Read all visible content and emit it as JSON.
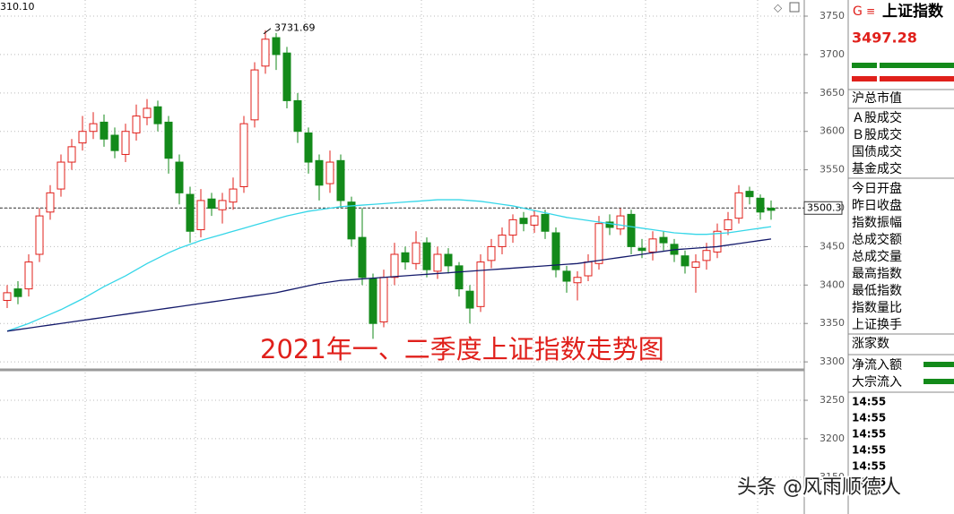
{
  "chart_data": {
    "type": "candlestick",
    "title": "2021年一、二季度上证指数走势图",
    "corner_label": "310.10",
    "ylim": [
      3102,
      3771
    ],
    "yticks": [
      3150,
      3200,
      3250,
      3300,
      3350,
      3400,
      3450,
      3500,
      3550,
      3600,
      3650,
      3700,
      3750
    ],
    "grid": true,
    "ref_line": 3500.3,
    "up_color": "#e0201b",
    "down_color": "#138a1a",
    "open": [
      3380,
      3395,
      3395,
      3440,
      3495,
      3525,
      3560,
      3585,
      3600,
      3612,
      3595,
      3570,
      3598,
      3618,
      3632,
      3612,
      3560,
      3518,
      3472,
      3512,
      3498,
      3508,
      3528,
      3615,
      3685,
      3722,
      3702,
      3640,
      3598,
      3562,
      3532,
      3562,
      3508,
      3462,
      3408,
      3352,
      3410,
      3442,
      3428,
      3455,
      3418,
      3440,
      3425,
      3392,
      3372,
      3432,
      3450,
      3465,
      3487,
      3478,
      3492,
      3468,
      3418,
      3403,
      3412,
      3428,
      3482,
      3473,
      3492,
      3448,
      3443,
      3462,
      3453,
      3438,
      3423,
      3432,
      3443,
      3472,
      3487,
      3522,
      3513,
      3500
    ],
    "high": [
      3400,
      3405,
      3440,
      3500,
      3530,
      3570,
      3590,
      3620,
      3625,
      3622,
      3605,
      3610,
      3635,
      3642,
      3640,
      3620,
      3570,
      3528,
      3525,
      3520,
      3520,
      3540,
      3620,
      3690,
      3731.69,
      3728,
      3710,
      3650,
      3605,
      3570,
      3575,
      3570,
      3515,
      3500,
      3415,
      3420,
      3455,
      3450,
      3470,
      3462,
      3450,
      3448,
      3430,
      3400,
      3440,
      3460,
      3475,
      3492,
      3495,
      3498,
      3498,
      3475,
      3425,
      3418,
      3440,
      3490,
      3492,
      3500,
      3498,
      3460,
      3470,
      3470,
      3460,
      3445,
      3440,
      3455,
      3480,
      3495,
      3530,
      3528,
      3518,
      3510
    ],
    "low": [
      3370,
      3375,
      3385,
      3430,
      3485,
      3515,
      3550,
      3575,
      3590,
      3580,
      3565,
      3560,
      3588,
      3608,
      3600,
      3545,
      3505,
      3455,
      3462,
      3490,
      3480,
      3498,
      3520,
      3605,
      3675,
      3680,
      3630,
      3585,
      3545,
      3510,
      3520,
      3500,
      3450,
      3400,
      3330,
      3345,
      3400,
      3420,
      3420,
      3410,
      3408,
      3415,
      3385,
      3350,
      3365,
      3422,
      3440,
      3455,
      3470,
      3468,
      3460,
      3410,
      3390,
      3380,
      3405,
      3420,
      3465,
      3465,
      3440,
      3435,
      3432,
      3445,
      3430,
      3415,
      3390,
      3420,
      3435,
      3465,
      3480,
      3505,
      3485,
      3485
    ],
    "close": [
      3390,
      3385,
      3430,
      3490,
      3520,
      3560,
      3580,
      3600,
      3610,
      3590,
      3575,
      3600,
      3620,
      3630,
      3610,
      3565,
      3520,
      3470,
      3510,
      3500,
      3510,
      3525,
      3610,
      3680,
      3720,
      3700,
      3640,
      3600,
      3560,
      3530,
      3560,
      3510,
      3460,
      3410,
      3350,
      3410,
      3440,
      3430,
      3455,
      3420,
      3440,
      3425,
      3395,
      3370,
      3430,
      3450,
      3465,
      3485,
      3480,
      3490,
      3470,
      3420,
      3405,
      3410,
      3430,
      3480,
      3475,
      3490,
      3450,
      3445,
      3460,
      3455,
      3440,
      3425,
      3430,
      3445,
      3470,
      3485,
      3520,
      3515,
      3495,
      3497.28
    ],
    "series": [
      {
        "color": "#35d6e8",
        "values": [
          3340,
          3345,
          3350,
          3356,
          3362,
          3368,
          3375,
          3382,
          3390,
          3398,
          3405,
          3412,
          3420,
          3428,
          3435,
          3442,
          3448,
          3453,
          3458,
          3462,
          3466,
          3470,
          3474,
          3478,
          3482,
          3486,
          3490,
          3493,
          3496,
          3498,
          3500,
          3502,
          3503,
          3504,
          3505,
          3506,
          3507,
          3508,
          3509,
          3510,
          3511,
          3511,
          3511,
          3510,
          3509,
          3507,
          3505,
          3503,
          3500,
          3497,
          3494,
          3491,
          3488,
          3486,
          3484,
          3482,
          3480,
          3478,
          3476,
          3474,
          3472,
          3470,
          3468,
          3467,
          3466,
          3466,
          3467,
          3468,
          3470,
          3472,
          3474,
          3476
        ]
      },
      {
        "color": "#141a6b",
        "values": [
          3340,
          3342,
          3344,
          3346,
          3348,
          3350,
          3352,
          3354,
          3356,
          3358,
          3360,
          3362,
          3364,
          3366,
          3368,
          3370,
          3372,
          3374,
          3376,
          3378,
          3380,
          3382,
          3384,
          3386,
          3388,
          3390,
          3393,
          3396,
          3399,
          3402,
          3404,
          3406,
          3407,
          3408,
          3409,
          3410,
          3411,
          3412,
          3413,
          3414,
          3415,
          3416,
          3417,
          3418,
          3419,
          3420,
          3421,
          3422,
          3423,
          3424,
          3425,
          3426,
          3427,
          3428,
          3430,
          3432,
          3434,
          3436,
          3438,
          3440,
          3442,
          3444,
          3446,
          3447,
          3448,
          3449,
          3450,
          3452,
          3454,
          3456,
          3458,
          3460
        ]
      }
    ]
  },
  "sidebar": {
    "code": "G",
    "name": "上证指数",
    "price": "3497.28",
    "fields": [
      "沪总市值",
      "Ａ股成交",
      "Ｂ股成交",
      "国债成交",
      "基金成交",
      "今日开盘",
      "昨日收盘",
      "指数振幅",
      "总成交额",
      "总成交量",
      "最高指数",
      "最低指数",
      "指数量比",
      "上证换手",
      "涨家数",
      "净流入额",
      "大宗流入"
    ],
    "times": [
      "14:55",
      "14:55",
      "14:55",
      "14:55",
      "14:55",
      "14:55"
    ]
  },
  "watermark": "头条 @风雨顺德人"
}
